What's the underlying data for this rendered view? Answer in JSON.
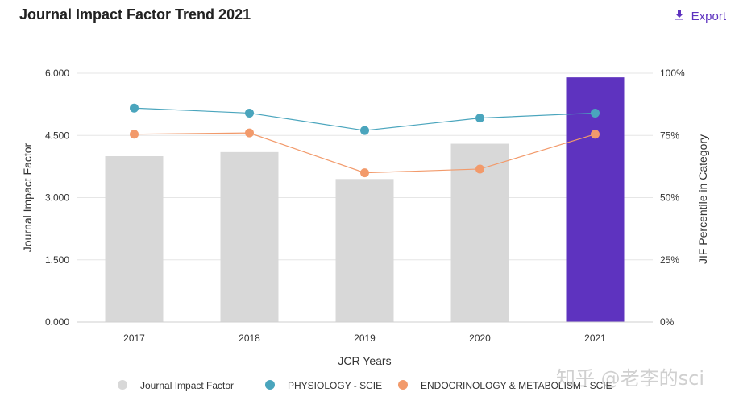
{
  "header": {
    "title": "Journal Impact Factor Trend 2021",
    "export_label": "Export"
  },
  "colors": {
    "accent": "#5e33bf",
    "bar_default": "#d8d8d8",
    "bar_highlight": "#5e33bf",
    "physiology": "#4aa5bd",
    "endocrinology": "#f29a6b",
    "grid": "#e6e6e6"
  },
  "chart_data": {
    "type": "bar",
    "title": "Journal Impact Factor Trend 2021",
    "categories": [
      "2017",
      "2018",
      "2019",
      "2020",
      "2021"
    ],
    "xlabel": "JCR Years",
    "ylabel": "Journal Impact Factor",
    "y2label": "JIF Percentile in Category",
    "ylim": [
      0,
      6
    ],
    "y2lim": [
      0,
      100
    ],
    "yticks": [
      "0.000",
      "1.500",
      "3.000",
      "4.500",
      "6.000"
    ],
    "y2ticks": [
      "0%",
      "25%",
      "50%",
      "75%",
      "100%"
    ],
    "highlight_category": "2021",
    "series": [
      {
        "name": "Journal Impact Factor",
        "type": "bar",
        "axis": "left",
        "values": [
          4.0,
          4.1,
          3.45,
          4.3,
          5.9
        ]
      },
      {
        "name": "PHYSIOLOGY - SCIE",
        "type": "line",
        "axis": "right",
        "values": [
          86,
          84,
          77,
          82,
          84
        ]
      },
      {
        "name": "ENDOCRINOLOGY & METABOLISM - SCIE",
        "type": "line",
        "axis": "right",
        "values": [
          75.5,
          76,
          60,
          61.5,
          75.5
        ]
      }
    ],
    "legend_position": "bottom"
  },
  "watermark": "知乎 @老李的sci"
}
